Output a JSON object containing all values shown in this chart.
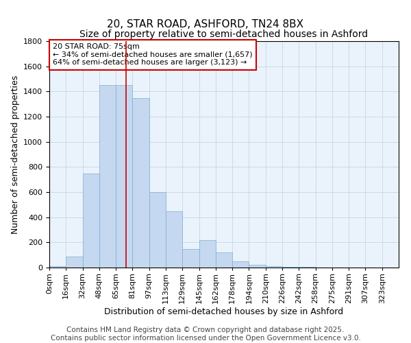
{
  "title_line1": "20, STAR ROAD, ASHFORD, TN24 8BX",
  "title_line2": "Size of property relative to semi-detached houses in Ashford",
  "xlabel": "Distribution of semi-detached houses by size in Ashford",
  "ylabel": "Number of semi-detached properties",
  "bar_color": "#c5d8f0",
  "bar_edge_color": "#7aafd4",
  "grid_color": "#c8d8e8",
  "background_color": "#eaf3fb",
  "annotation_text": "20 STAR ROAD: 75sqm\n← 34% of semi-detached houses are smaller (1,657)\n64% of semi-detached houses are larger (3,123) →",
  "vline_x": 4,
  "vline_color": "#cc0000",
  "ylim": [
    0,
    1800
  ],
  "categories": [
    "0sqm",
    "16sqm",
    "32sqm",
    "48sqm",
    "65sqm",
    "81sqm",
    "97sqm",
    "113sqm",
    "129sqm",
    "145sqm",
    "162sqm",
    "178sqm",
    "194sqm",
    "210sqm",
    "226sqm",
    "242sqm",
    "258sqm",
    "275sqm",
    "291sqm",
    "307sqm",
    "323sqm"
  ],
  "values": [
    10,
    90,
    750,
    1450,
    1450,
    1350,
    600,
    450,
    150,
    220,
    120,
    50,
    20,
    10,
    5,
    3,
    2,
    1,
    1,
    1,
    0
  ],
  "footer_text": "Contains HM Land Registry data © Crown copyright and database right 2025.\nContains public sector information licensed under the Open Government Licence v3.0.",
  "title_fontsize": 11,
  "subtitle_fontsize": 10,
  "axis_label_fontsize": 9,
  "tick_fontsize": 8,
  "annotation_fontsize": 8,
  "footer_fontsize": 7.5
}
